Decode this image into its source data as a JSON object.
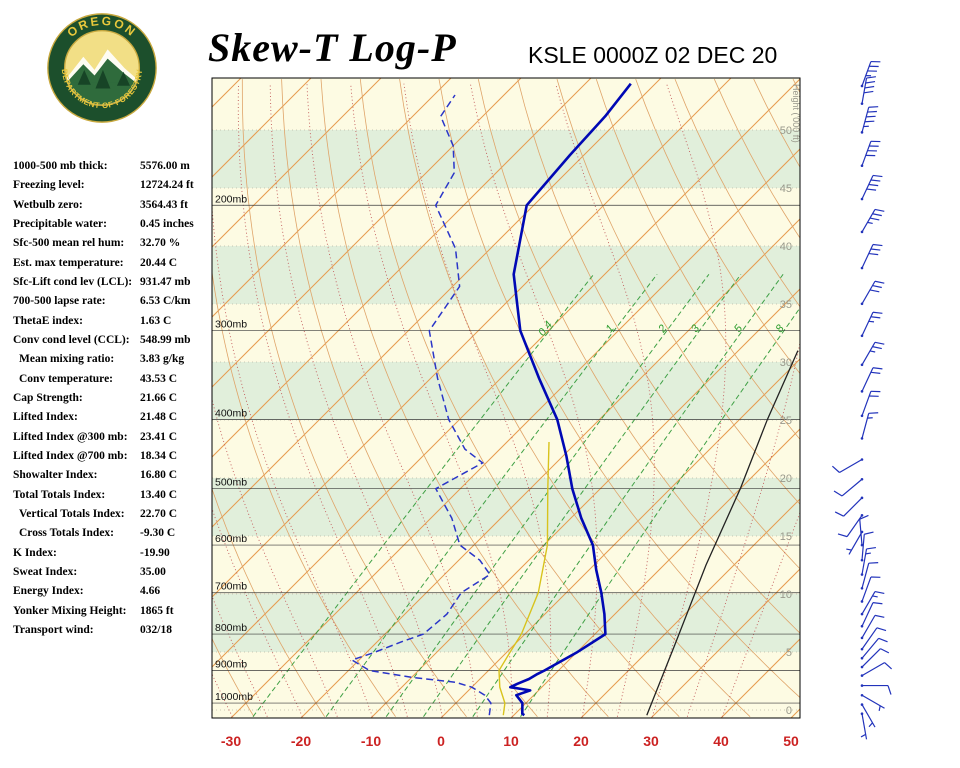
{
  "header": {
    "title": "Skew-T Log-P",
    "station_line": "KSLE 0000Z 02 DEC 20",
    "logo_top": "OREGON",
    "logo_bottom": "DEPARTMENT OF FORESTRY"
  },
  "indices": [
    {
      "label": "1000-500 mb thick:",
      "value": "5576.00 m",
      "indent": false
    },
    {
      "label": "Freezing level:",
      "value": "12724.24 ft",
      "indent": false
    },
    {
      "label": "Wetbulb zero:",
      "value": "3564.43 ft",
      "indent": false
    },
    {
      "label": "Precipitable water:",
      "value": "0.45 inches",
      "indent": false
    },
    {
      "label": "Sfc-500 mean rel hum:",
      "value": "32.70 %",
      "indent": false
    },
    {
      "label": "Est. max temperature:",
      "value": "20.44 C",
      "indent": false
    },
    {
      "label": "Sfc-Lift cond lev (LCL):",
      "value": "931.47 mb",
      "indent": false
    },
    {
      "label": "700-500 lapse rate:",
      "value": "6.53 C/km",
      "indent": false
    },
    {
      "label": "ThetaE index:",
      "value": "1.63 C",
      "indent": false
    },
    {
      "label": "Conv cond level (CCL):",
      "value": "548.99 mb",
      "indent": false
    },
    {
      "label": "Mean mixing ratio:",
      "value": "3.83 g/kg",
      "indent": true
    },
    {
      "label": "Conv temperature:",
      "value": "43.53 C",
      "indent": true
    },
    {
      "label": "Cap Strength:",
      "value": "21.66 C",
      "indent": false
    },
    {
      "label": "Lifted Index:",
      "value": "21.48 C",
      "indent": false
    },
    {
      "label": "Lifted Index @300 mb:",
      "value": "23.41 C",
      "indent": false
    },
    {
      "label": "Lifted Index @700 mb:",
      "value": "18.34 C",
      "indent": false
    },
    {
      "label": "Showalter Index:",
      "value": "16.80 C",
      "indent": false
    },
    {
      "label": "Total Totals Index:",
      "value": "13.40 C",
      "indent": false
    },
    {
      "label": "Vertical Totals Index:",
      "value": "22.70 C",
      "indent": true
    },
    {
      "label": "Cross Totals Index:",
      "value": "-9.30 C",
      "indent": true
    },
    {
      "label": "K Index:",
      "value": "-19.90",
      "indent": false
    },
    {
      "label": "Sweat Index:",
      "value": "35.00",
      "indent": false
    },
    {
      "label": "Energy Index:",
      "value": "4.66",
      "indent": false
    },
    {
      "label": "Yonker Mixing Height:",
      "value": "1865 ft",
      "indent": false
    },
    {
      "label": "Transport wind:",
      "value": "032/18",
      "indent": false
    }
  ],
  "chart_data": {
    "type": "skewt_log_p",
    "title": "Skew-T Log-P",
    "station": "KSLE",
    "valid_time": "0000Z 02 DEC 20",
    "x_axis": {
      "ticks_c": [
        -30,
        -20,
        -10,
        0,
        10,
        20,
        30,
        40,
        50
      ]
    },
    "pressure_levels_mb": [
      200,
      300,
      400,
      500,
      600,
      700,
      800,
      900,
      1000
    ],
    "pressure_label_suffix": "mb",
    "height_axis": {
      "label": "Height ('000 ft)",
      "ticks_kft": [
        0,
        5,
        10,
        15,
        20,
        25,
        30,
        35,
        40,
        45,
        50
      ]
    },
    "mixing_ratio_gkg": [
      0.4,
      1,
      2,
      3,
      5,
      8
    ],
    "isotherm_step_c": 10,
    "dry_adiabat_step_c": 10,
    "moist_adiabat_step_c": 5,
    "temperature_profile": [
      [
        1040,
        11.5
      ],
      [
        1035,
        11.0
      ],
      [
        1000,
        9.5
      ],
      [
        975,
        7.5
      ],
      [
        960,
        8.8
      ],
      [
        950,
        5.5
      ],
      [
        940,
        6.0
      ],
      [
        925,
        7.0
      ],
      [
        910,
        7.5
      ],
      [
        900,
        8.0
      ],
      [
        850,
        10.0
      ],
      [
        800,
        11.5
      ],
      [
        750,
        8.5
      ],
      [
        700,
        5.0
      ],
      [
        650,
        1.0
      ],
      [
        600,
        -3.0
      ],
      [
        550,
        -8.5
      ],
      [
        500,
        -14.0
      ],
      [
        450,
        -19.5
      ],
      [
        400,
        -26.0
      ],
      [
        350,
        -34.5
      ],
      [
        300,
        -44.0
      ],
      [
        250,
        -53.0
      ],
      [
        200,
        -61.0
      ],
      [
        170,
        -62.0
      ],
      [
        150,
        -62.5
      ],
      [
        135,
        -63.5
      ]
    ],
    "dewpoint_profile": [
      [
        1040,
        6.5
      ],
      [
        1000,
        5.0
      ],
      [
        975,
        3.0
      ],
      [
        950,
        0.0
      ],
      [
        935,
        -3.0
      ],
      [
        920,
        -10.0
      ],
      [
        900,
        -17.0
      ],
      [
        870,
        -21.0
      ],
      [
        850,
        -19.0
      ],
      [
        820,
        -16.5
      ],
      [
        800,
        -14.5
      ],
      [
        750,
        -14.0
      ],
      [
        700,
        -15.0
      ],
      [
        660,
        -13.5
      ],
      [
        630,
        -17.0
      ],
      [
        600,
        -22.0
      ],
      [
        550,
        -27.0
      ],
      [
        500,
        -33.5
      ],
      [
        460,
        -30.5
      ],
      [
        440,
        -35.0
      ],
      [
        400,
        -41.5
      ],
      [
        350,
        -49.0
      ],
      [
        300,
        -57.0
      ],
      [
        260,
        -59.0
      ],
      [
        230,
        -65.0
      ],
      [
        200,
        -74.0
      ],
      [
        180,
        -76.0
      ],
      [
        165,
        -80.0
      ],
      [
        150,
        -86.0
      ],
      [
        140,
        -87.0
      ]
    ],
    "wetbulb_profile": [
      [
        1040,
        8.5
      ],
      [
        1000,
        7.0
      ],
      [
        950,
        4.0
      ],
      [
        900,
        1.5
      ],
      [
        850,
        0.5
      ],
      [
        800,
        -0.5
      ],
      [
        700,
        -4.0
      ],
      [
        600,
        -9.5
      ],
      [
        500,
        -17.5
      ],
      [
        430,
        -24.0
      ]
    ],
    "reference_line": [
      [
        1040,
        29.0
      ],
      [
        830,
        23.0
      ],
      [
        640,
        16.0
      ],
      [
        500,
        10.0
      ],
      [
        400,
        4.0
      ],
      [
        320,
        -1.5
      ]
    ],
    "wind_barbs_kt": [
      [
        1035,
        170,
        5
      ],
      [
        1005,
        150,
        5
      ],
      [
        975,
        120,
        5
      ],
      [
        945,
        90,
        10
      ],
      [
        915,
        60,
        10
      ],
      [
        890,
        45,
        10
      ],
      [
        865,
        40,
        10
      ],
      [
        840,
        35,
        10
      ],
      [
        810,
        30,
        10
      ],
      [
        780,
        25,
        10
      ],
      [
        750,
        30,
        15
      ],
      [
        720,
        20,
        10
      ],
      [
        690,
        15,
        10
      ],
      [
        660,
        10,
        15
      ],
      [
        630,
        5,
        10
      ],
      [
        600,
        355,
        10
      ],
      [
        575,
        210,
        5
      ],
      [
        545,
        215,
        10
      ],
      [
        515,
        225,
        10
      ],
      [
        485,
        230,
        10
      ],
      [
        455,
        240,
        10
      ],
      [
        425,
        15,
        15
      ],
      [
        395,
        20,
        20
      ],
      [
        365,
        25,
        20
      ],
      [
        335,
        30,
        25
      ],
      [
        305,
        25,
        25
      ],
      [
        275,
        30,
        30
      ],
      [
        245,
        25,
        30
      ],
      [
        218,
        30,
        35
      ],
      [
        196,
        25,
        40
      ],
      [
        176,
        20,
        40
      ],
      [
        158,
        15,
        45
      ],
      [
        144,
        10,
        40
      ],
      [
        136,
        20,
        35
      ]
    ],
    "colors": {
      "bg_cream": "#FDFBE3",
      "bg_green": "#E1EFDB",
      "isotherm": "#E79B4E",
      "dry_adiabat": "#DFA469",
      "moist_adiabat": "#C25B5B",
      "mixing_ratio": "#3FA045",
      "mixing_label": "#2F9E2F",
      "pressure_line": "#3A3A3A",
      "pressure_label": "#111111",
      "height_line": "#B9B9A6",
      "height_text": "#99998C",
      "temp_axis_label": "#CC2222",
      "temperature": "#0008B4",
      "dewpoint": "#2A35C8",
      "wetbulb": "#D8C31C",
      "reference": "#222222",
      "wind": "#2233BB"
    }
  }
}
